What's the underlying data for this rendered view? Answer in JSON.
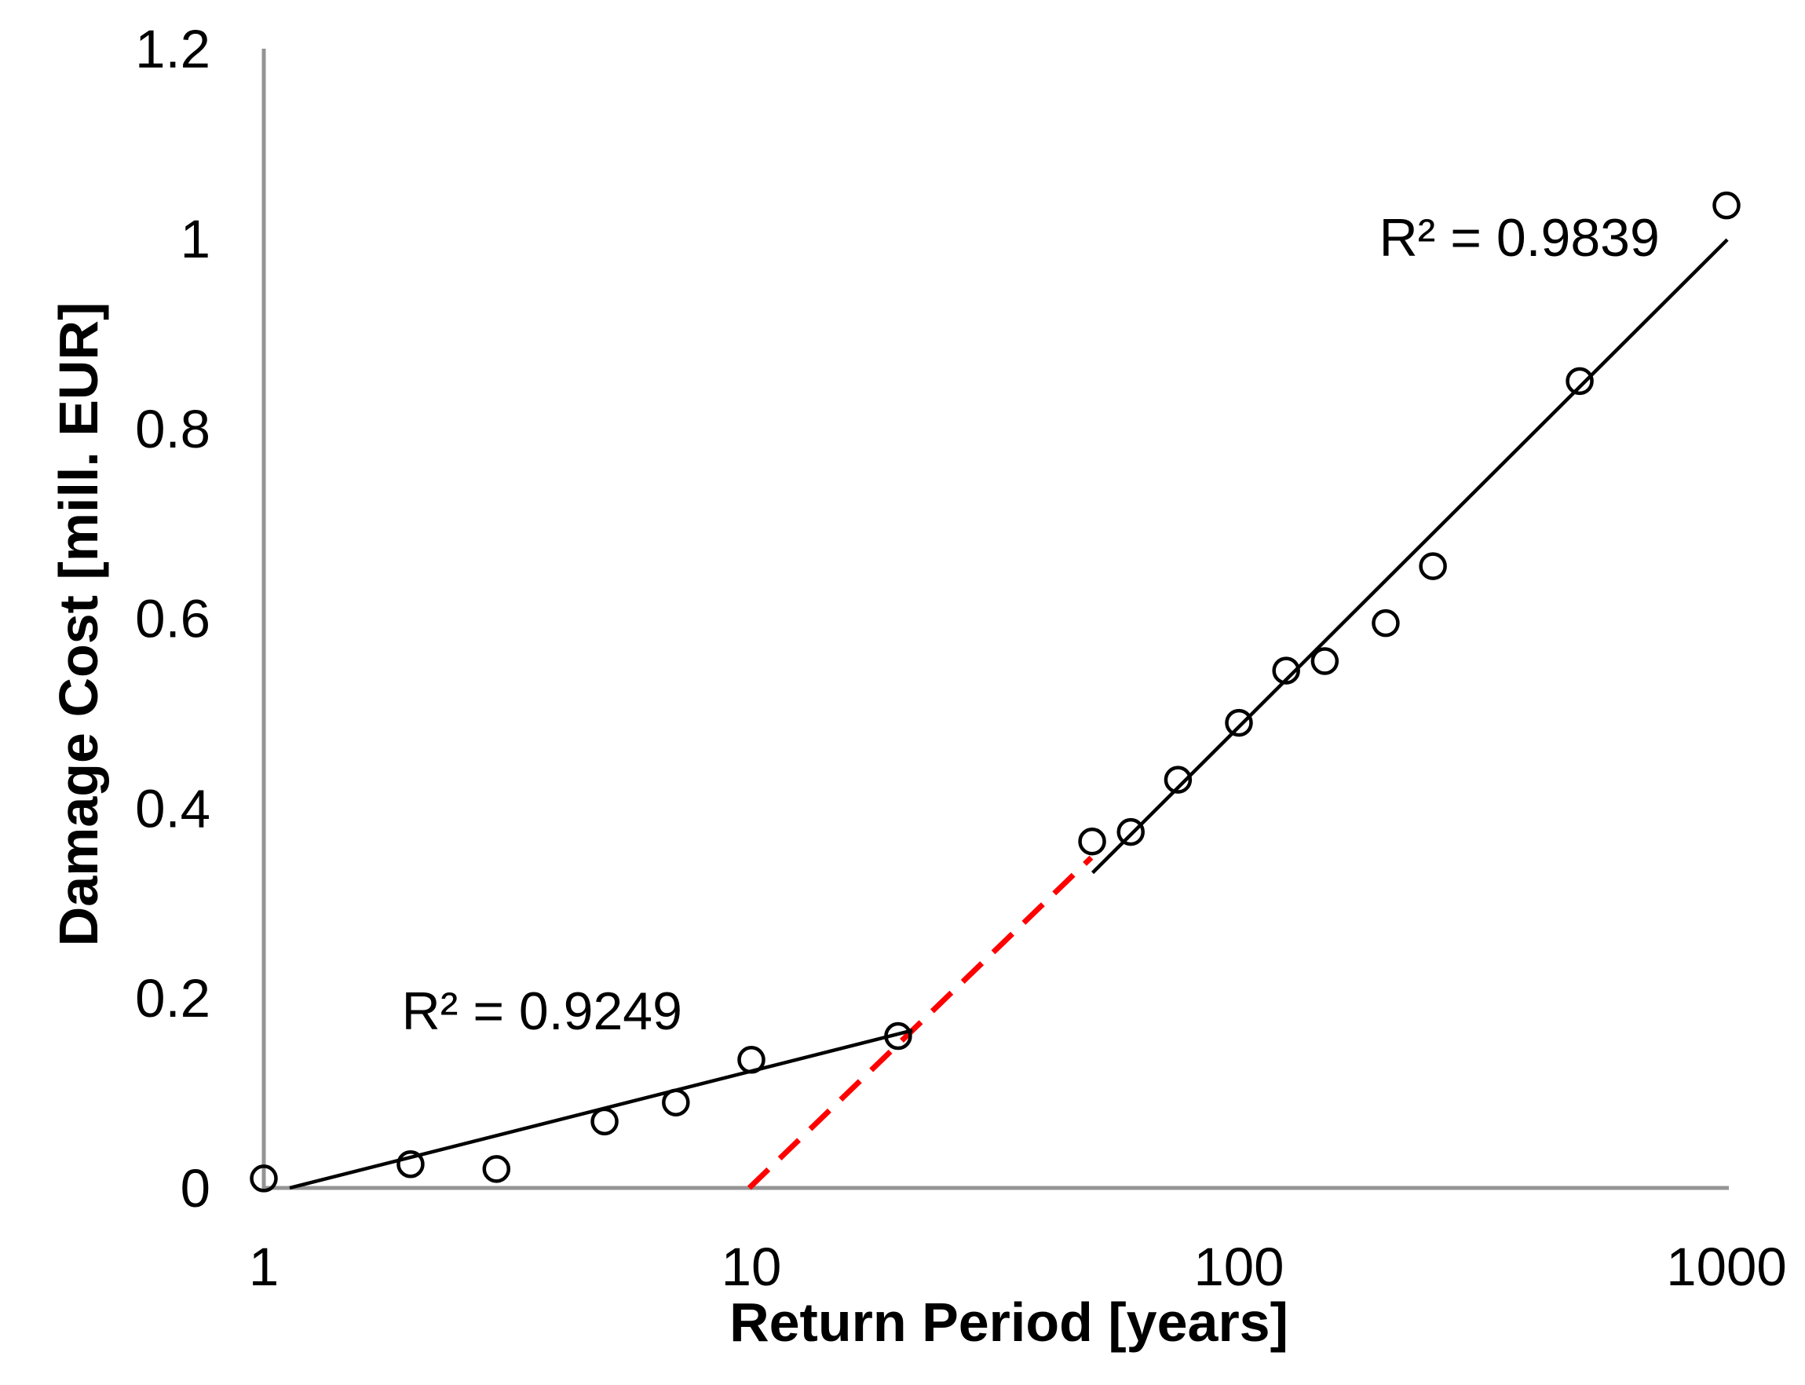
{
  "chart_data": {
    "type": "scatter",
    "title": "",
    "background": "#ffffff",
    "axis_color": "#949494",
    "marker": {
      "shape": "open-circle",
      "color": "#000000"
    },
    "x_axis": {
      "label": "Return Period [years]",
      "scale": "log",
      "ticks": [
        1,
        10,
        100,
        1000
      ],
      "tick_labels": [
        "1",
        "10",
        "100",
        "1000"
      ],
      "range": [
        1,
        1000
      ],
      "grid": false
    },
    "y_axis": {
      "label": "Damage Cost [mill. EUR]",
      "scale": "linear",
      "ticks": [
        0,
        0.2,
        0.4,
        0.6,
        0.8,
        1,
        1.2
      ],
      "tick_labels": [
        "0",
        "0.2",
        "0.4",
        "0.6",
        "0.8",
        "1",
        "1.2"
      ],
      "range": [
        0,
        1.2
      ],
      "grid": false
    },
    "series": [
      {
        "name": "damage-cost-observations",
        "points": [
          [
            1,
            0.01
          ],
          [
            2,
            0.025
          ],
          [
            3,
            0.02
          ],
          [
            5,
            0.07
          ],
          [
            7,
            0.09
          ],
          [
            10,
            0.135
          ],
          [
            20,
            0.16
          ],
          [
            50,
            0.365
          ],
          [
            60,
            0.375
          ],
          [
            75,
            0.43
          ],
          [
            100,
            0.49
          ],
          [
            125,
            0.545
          ],
          [
            150,
            0.555
          ],
          [
            200,
            0.595
          ],
          [
            250,
            0.655
          ],
          [
            500,
            0.85
          ],
          [
            1000,
            1.035
          ]
        ]
      }
    ],
    "trendlines": [
      {
        "name": "lower-trendline",
        "style": "solid",
        "color": "#000000",
        "from": [
          1.13,
          0
        ],
        "to": [
          21.4,
          0.166
        ]
      },
      {
        "name": "upper-trendline",
        "style": "solid",
        "color": "#000000",
        "from": [
          50.1,
          0.332
        ],
        "to": [
          1004,
          0.999
        ]
      },
      {
        "name": "extrapolated-trendline",
        "style": "dashed",
        "color": "#ff0000",
        "from": [
          9.9,
          0
        ],
        "to": [
          49.8,
          0.348
        ]
      }
    ],
    "annotations": [
      {
        "name": "r2-lower",
        "text": "R² = 0.9249",
        "at": [
          3.72,
          0.186
        ]
      },
      {
        "name": "r2-upper",
        "text": "R² = 0.9839",
        "at": [
          376,
          1.001
        ]
      }
    ]
  }
}
